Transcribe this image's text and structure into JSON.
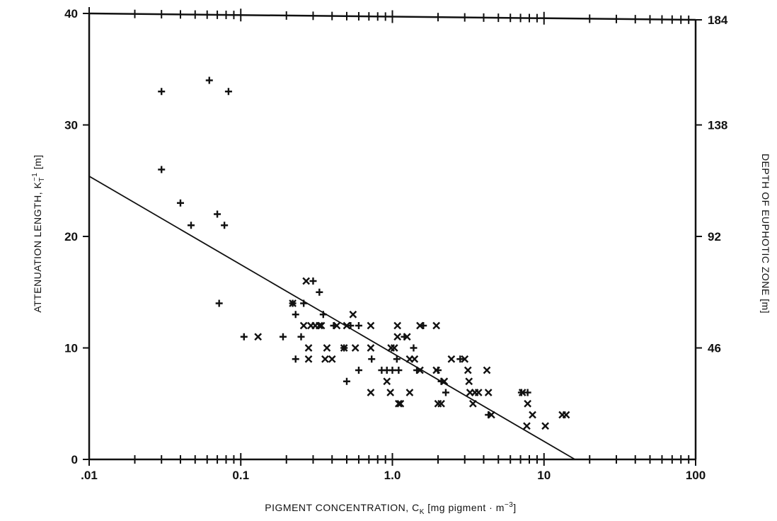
{
  "chart_data": {
    "type": "scatter",
    "title": "",
    "xlabel": {
      "main": "PIGMENT CONCENTRATION, C",
      "sub": "K",
      "rest": " [mg pigment · m",
      "sup": "−3",
      "end": "]"
    },
    "ylabel": {
      "main": "ATTENUATION LENGTH, K",
      "sub": "T",
      "sup": "−1",
      "rest": " [m]"
    },
    "y2label": "DEPTH OF EUPHOTIC ZONE [m]",
    "x_scale": "log",
    "xlim": [
      0.01,
      100
    ],
    "ylim": [
      0,
      40
    ],
    "x_ticks": [
      {
        "value": 0.01,
        "label": ".01"
      },
      {
        "value": 0.1,
        "label": "0.1"
      },
      {
        "value": 1,
        "label": "1.0"
      },
      {
        "value": 10,
        "label": "10"
      },
      {
        "value": 100,
        "label": "100"
      }
    ],
    "y_ticks": [
      {
        "value": 0,
        "label": "0"
      },
      {
        "value": 10,
        "label": "10"
      },
      {
        "value": 20,
        "label": "20"
      },
      {
        "value": 30,
        "label": "30"
      },
      {
        "value": 40,
        "label": "40"
      }
    ],
    "y2_ticks": [
      {
        "value": 10,
        "label": "46"
      },
      {
        "value": 20,
        "label": "92"
      },
      {
        "value": 30,
        "label": "138"
      },
      {
        "value": 40,
        "label": "184"
      }
    ],
    "grid": false,
    "legend": "none",
    "series": [
      {
        "marker": "plus",
        "points": [
          [
            0.03,
            33
          ],
          [
            0.03,
            26
          ],
          [
            0.04,
            23
          ],
          [
            0.047,
            21
          ],
          [
            0.062,
            34
          ],
          [
            0.07,
            22
          ],
          [
            0.078,
            21
          ],
          [
            0.083,
            33
          ],
          [
            0.072,
            14
          ],
          [
            0.105,
            11
          ],
          [
            0.19,
            11
          ],
          [
            0.22,
            14
          ],
          [
            0.23,
            13
          ],
          [
            0.23,
            9
          ],
          [
            0.25,
            11
          ],
          [
            0.26,
            14
          ],
          [
            0.3,
            16
          ],
          [
            0.33,
            15
          ],
          [
            0.35,
            13
          ],
          [
            0.41,
            12
          ],
          [
            0.48,
            10
          ],
          [
            0.5,
            7
          ],
          [
            0.53,
            12
          ],
          [
            0.6,
            8
          ],
          [
            0.6,
            12
          ],
          [
            0.73,
            9
          ],
          [
            0.85,
            8
          ],
          [
            0.92,
            8
          ],
          [
            1.0,
            8
          ],
          [
            1.07,
            9
          ],
          [
            1.1,
            8
          ],
          [
            1.2,
            11
          ],
          [
            1.38,
            10
          ],
          [
            1.45,
            8
          ],
          [
            1.6,
            12
          ],
          [
            2.0,
            8
          ],
          [
            2.1,
            7
          ],
          [
            2.25,
            6
          ],
          [
            2.8,
            9
          ],
          [
            4.3,
            4
          ],
          [
            7.1,
            6
          ],
          [
            7.8,
            6
          ]
        ]
      },
      {
        "marker": "cross",
        "points": [
          [
            0.13,
            11
          ],
          [
            0.22,
            14
          ],
          [
            0.26,
            12
          ],
          [
            0.27,
            16
          ],
          [
            0.28,
            10
          ],
          [
            0.28,
            9
          ],
          [
            0.29,
            12
          ],
          [
            0.31,
            12
          ],
          [
            0.33,
            12
          ],
          [
            0.34,
            12
          ],
          [
            0.36,
            9
          ],
          [
            0.37,
            10
          ],
          [
            0.4,
            9
          ],
          [
            0.43,
            12
          ],
          [
            0.48,
            10
          ],
          [
            0.5,
            12
          ],
          [
            0.55,
            13
          ],
          [
            0.57,
            10
          ],
          [
            0.72,
            6
          ],
          [
            0.72,
            10
          ],
          [
            0.72,
            12
          ],
          [
            0.92,
            7
          ],
          [
            0.97,
            6
          ],
          [
            0.98,
            10
          ],
          [
            1.03,
            10
          ],
          [
            1.08,
            12
          ],
          [
            1.08,
            11
          ],
          [
            1.1,
            5
          ],
          [
            1.13,
            5
          ],
          [
            1.25,
            11
          ],
          [
            1.3,
            9
          ],
          [
            1.3,
            6
          ],
          [
            1.4,
            9
          ],
          [
            1.52,
            8
          ],
          [
            1.52,
            12
          ],
          [
            1.95,
            12
          ],
          [
            1.95,
            8
          ],
          [
            2.0,
            5
          ],
          [
            2.1,
            5
          ],
          [
            2.2,
            7
          ],
          [
            2.45,
            9
          ],
          [
            3.0,
            9
          ],
          [
            3.15,
            8
          ],
          [
            3.2,
            7
          ],
          [
            3.25,
            6
          ],
          [
            3.4,
            5
          ],
          [
            3.5,
            6
          ],
          [
            3.7,
            6
          ],
          [
            4.2,
            8
          ],
          [
            4.3,
            6
          ],
          [
            4.5,
            4
          ],
          [
            7.2,
            6
          ],
          [
            7.7,
            3
          ],
          [
            7.8,
            5
          ],
          [
            8.4,
            4
          ],
          [
            10.2,
            3
          ],
          [
            13.2,
            4
          ],
          [
            14.0,
            4
          ]
        ]
      }
    ],
    "trendline": {
      "x": [
        0.01,
        16
      ],
      "y": [
        25.4,
        0
      ]
    }
  }
}
